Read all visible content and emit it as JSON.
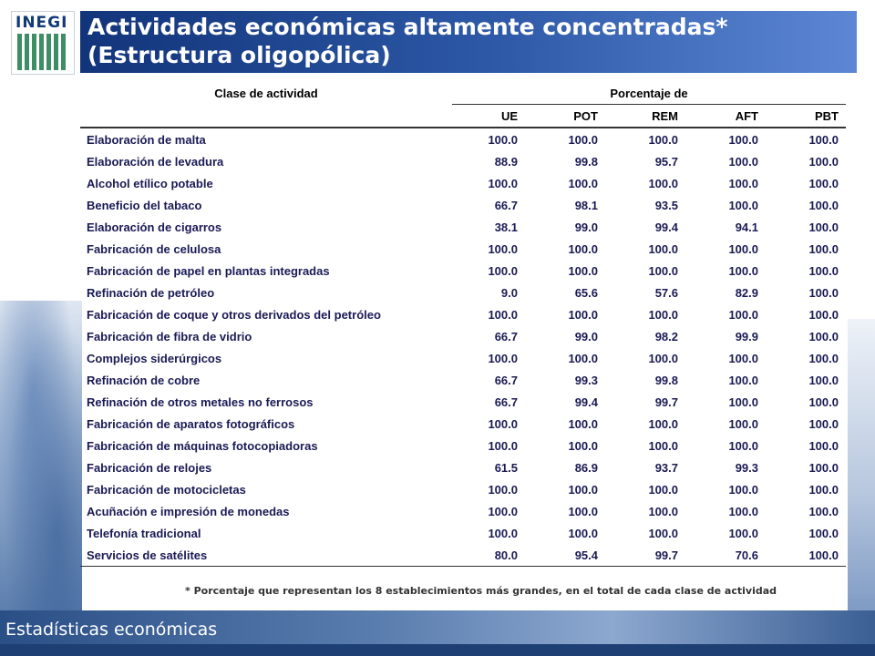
{
  "header": {
    "logo_text": "INEGI",
    "title": "Actividades económicas altamente concentradas*\n(Estructura oligopólica)"
  },
  "table": {
    "col_activity": "Clase de actividad",
    "col_group": "Porcentaje de",
    "columns": [
      "UE",
      "POT",
      "REM",
      "AFT",
      "PBT"
    ],
    "rows": [
      {
        "name": "Elaboración de malta",
        "values": [
          "100.0",
          "100.0",
          "100.0",
          "100.0",
          "100.0"
        ]
      },
      {
        "name": "Elaboración de levadura",
        "values": [
          "88.9",
          "99.8",
          "95.7",
          "100.0",
          "100.0"
        ]
      },
      {
        "name": "Alcohol etílico potable",
        "values": [
          "100.0",
          "100.0",
          "100.0",
          "100.0",
          "100.0"
        ]
      },
      {
        "name": "Beneficio del tabaco",
        "values": [
          "66.7",
          "98.1",
          "93.5",
          "100.0",
          "100.0"
        ]
      },
      {
        "name": "Elaboración de cigarros",
        "values": [
          "38.1",
          "99.0",
          "99.4",
          "94.1",
          "100.0"
        ]
      },
      {
        "name": "Fabricación de celulosa",
        "values": [
          "100.0",
          "100.0",
          "100.0",
          "100.0",
          "100.0"
        ]
      },
      {
        "name": "Fabricación de papel en plantas integradas",
        "values": [
          "100.0",
          "100.0",
          "100.0",
          "100.0",
          "100.0"
        ]
      },
      {
        "name": "Refinación de petróleo",
        "values": [
          "9.0",
          "65.6",
          "57.6",
          "82.9",
          "100.0"
        ]
      },
      {
        "name": "Fabricación de coque y otros derivados del petróleo",
        "values": [
          "100.0",
          "100.0",
          "100.0",
          "100.0",
          "100.0"
        ]
      },
      {
        "name": "Fabricación de fibra de vidrio",
        "values": [
          "66.7",
          "99.0",
          "98.2",
          "99.9",
          "100.0"
        ]
      },
      {
        "name": "Complejos siderúrgicos",
        "values": [
          "100.0",
          "100.0",
          "100.0",
          "100.0",
          "100.0"
        ]
      },
      {
        "name": "Refinación de cobre",
        "values": [
          "66.7",
          "99.3",
          "99.8",
          "100.0",
          "100.0"
        ]
      },
      {
        "name": "Refinación de otros metales no ferrosos",
        "values": [
          "66.7",
          "99.4",
          "99.7",
          "100.0",
          "100.0"
        ]
      },
      {
        "name": "Fabricación de aparatos fotográficos",
        "values": [
          "100.0",
          "100.0",
          "100.0",
          "100.0",
          "100.0"
        ]
      },
      {
        "name": "Fabricación de máquinas fotocopiadoras",
        "values": [
          "100.0",
          "100.0",
          "100.0",
          "100.0",
          "100.0"
        ]
      },
      {
        "name": "Fabricación de relojes",
        "values": [
          "61.5",
          "86.9",
          "93.7",
          "99.3",
          "100.0"
        ]
      },
      {
        "name": "Fabricación de motocicletas",
        "values": [
          "100.0",
          "100.0",
          "100.0",
          "100.0",
          "100.0"
        ]
      },
      {
        "name": "Acuñación e impresión de monedas",
        "values": [
          "100.0",
          "100.0",
          "100.0",
          "100.0",
          "100.0"
        ]
      },
      {
        "name": "Telefonía tradicional",
        "values": [
          "100.0",
          "100.0",
          "100.0",
          "100.0",
          "100.0"
        ]
      },
      {
        "name": "Servicios de satélites",
        "values": [
          "80.0",
          "95.4",
          "99.7",
          "70.6",
          "100.0"
        ]
      }
    ]
  },
  "footnote": "* Porcentaje que representan los 8 establecimientos más grandes, en el total de cada clase de actividad",
  "footer": {
    "label": "Estadísticas económicas"
  }
}
